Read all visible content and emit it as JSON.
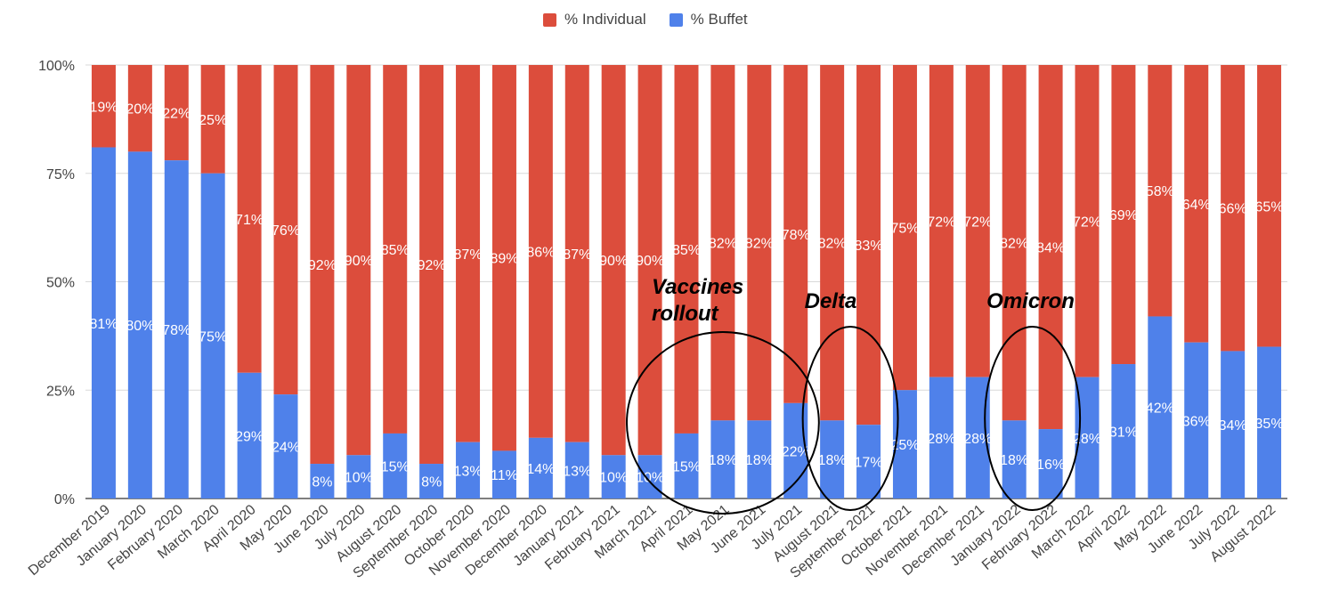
{
  "chart_data": {
    "type": "bar",
    "stacked": true,
    "title": "",
    "xlabel": "",
    "ylabel": "",
    "ylim": [
      0,
      100
    ],
    "y_ticks": [
      "0%",
      "25%",
      "50%",
      "75%",
      "100%"
    ],
    "grid": true,
    "legend_position": "top-center",
    "categories": [
      "December 2019",
      "January 2020",
      "February 2020",
      "March 2020",
      "April 2020",
      "May 2020",
      "June 2020",
      "July 2020",
      "August 2020",
      "September 2020",
      "October 2020",
      "November 2020",
      "December 2020",
      "January 2021",
      "February 2021",
      "March 2021",
      "April 2021",
      "May 2021",
      "June 2021",
      "July 2021",
      "August 2021",
      "September 2021",
      "October 2021",
      "November 2021",
      "December 2021",
      "January 2022",
      "February 2022",
      "March 2022",
      "April 2022",
      "May 2022",
      "June 2022",
      "July 2022",
      "August 2022"
    ],
    "series": [
      {
        "name": "% Buffet",
        "color": "#4f81ea",
        "values": [
          81,
          80,
          78,
          75,
          29,
          24,
          8,
          10,
          15,
          8,
          13,
          11,
          14,
          13,
          10,
          10,
          15,
          18,
          18,
          22,
          18,
          17,
          25,
          28,
          28,
          18,
          16,
          28,
          31,
          42,
          36,
          34,
          35
        ]
      },
      {
        "name": "% Individual",
        "color": "#dc4d3c",
        "values": [
          19,
          20,
          22,
          25,
          71,
          76,
          92,
          90,
          85,
          92,
          87,
          89,
          86,
          87,
          90,
          90,
          85,
          82,
          82,
          78,
          82,
          83,
          75,
          72,
          72,
          82,
          84,
          72,
          69,
          58,
          64,
          66,
          65
        ]
      }
    ],
    "annotations": [
      {
        "text": "Vaccines rollout",
        "lines": [
          "Vaccines",
          "rollout"
        ],
        "categories": [
          "April 2021",
          "May 2021",
          "June 2021"
        ]
      },
      {
        "text": "Delta",
        "lines": [
          "Delta"
        ],
        "categories": [
          "August 2021",
          "September 2021"
        ]
      },
      {
        "text": "Omicron",
        "lines": [
          "Omicron"
        ],
        "categories": [
          "January 2022",
          "February 2022"
        ]
      }
    ]
  }
}
